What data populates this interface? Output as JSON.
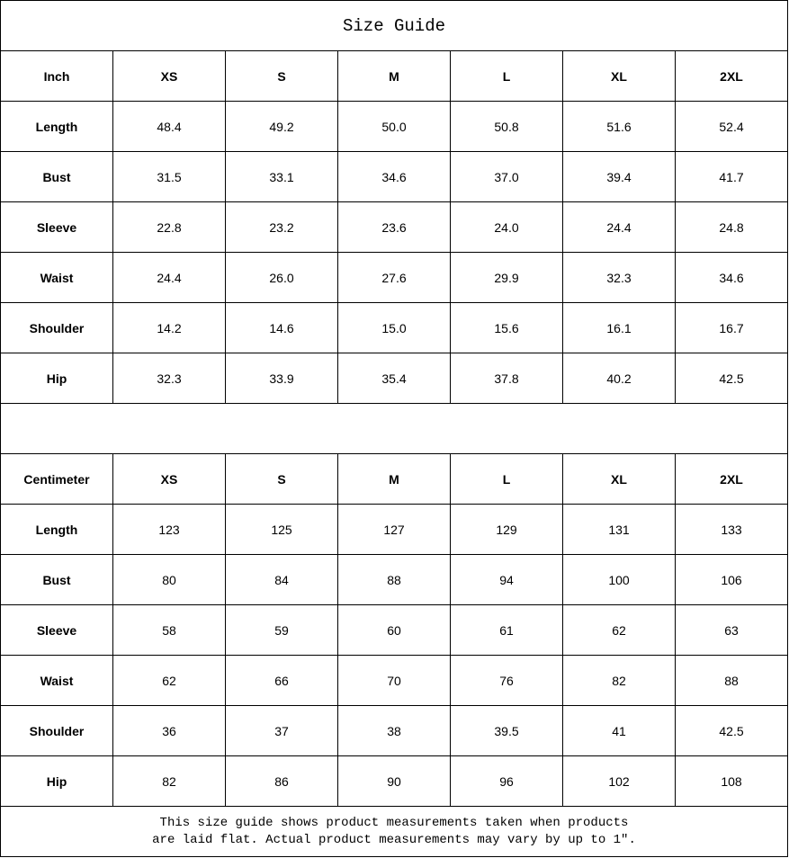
{
  "title": "Size Guide",
  "sizes": [
    "XS",
    "S",
    "M",
    "L",
    "XL",
    "2XL"
  ],
  "inch": {
    "unit": "Inch",
    "rows": [
      {
        "label": "Length",
        "values": [
          "48.4",
          "49.2",
          "50.0",
          "50.8",
          "51.6",
          "52.4"
        ]
      },
      {
        "label": "Bust",
        "values": [
          "31.5",
          "33.1",
          "34.6",
          "37.0",
          "39.4",
          "41.7"
        ]
      },
      {
        "label": "Sleeve",
        "values": [
          "22.8",
          "23.2",
          "23.6",
          "24.0",
          "24.4",
          "24.8"
        ]
      },
      {
        "label": "Waist",
        "values": [
          "24.4",
          "26.0",
          "27.6",
          "29.9",
          "32.3",
          "34.6"
        ]
      },
      {
        "label": "Shoulder",
        "values": [
          "14.2",
          "14.6",
          "15.0",
          "15.6",
          "16.1",
          "16.7"
        ]
      },
      {
        "label": "Hip",
        "values": [
          "32.3",
          "33.9",
          "35.4",
          "37.8",
          "40.2",
          "42.5"
        ]
      }
    ]
  },
  "cm": {
    "unit": "Centimeter",
    "rows": [
      {
        "label": "Length",
        "values": [
          "123",
          "125",
          "127",
          "129",
          "131",
          "133"
        ]
      },
      {
        "label": "Bust",
        "values": [
          "80",
          "84",
          "88",
          "94",
          "100",
          "106"
        ]
      },
      {
        "label": "Sleeve",
        "values": [
          "58",
          "59",
          "60",
          "61",
          "62",
          "63"
        ]
      },
      {
        "label": "Waist",
        "values": [
          "62",
          "66",
          "70",
          "76",
          "82",
          "88"
        ]
      },
      {
        "label": "Shoulder",
        "values": [
          "36",
          "37",
          "38",
          "39.5",
          "41",
          "42.5"
        ]
      },
      {
        "label": "Hip",
        "values": [
          "82",
          "86",
          "90",
          "96",
          "102",
          "108"
        ]
      }
    ]
  },
  "note_line1": "This size guide shows product measurements taken when products",
  "note_line2": "are laid flat. Actual product measurements may vary by up to 1″."
}
